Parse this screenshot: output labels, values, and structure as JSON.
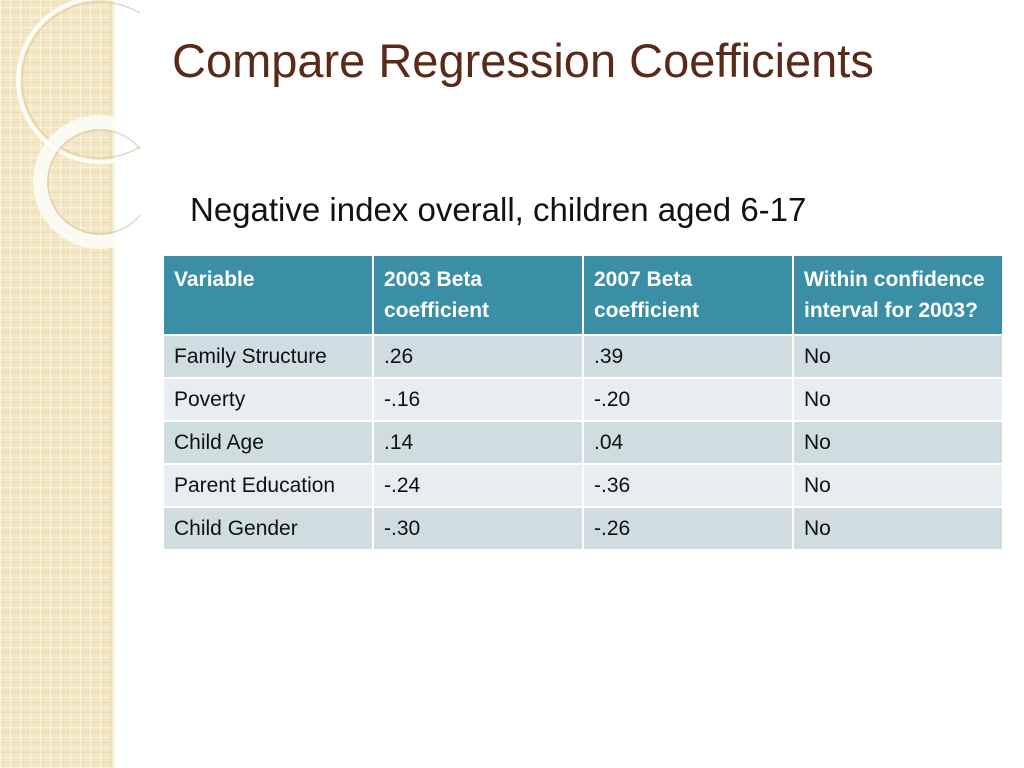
{
  "slide": {
    "title": "Compare Regression Coefficients",
    "subtitle": "Negative index overall, children aged 6-17"
  },
  "table": {
    "headers": [
      "Variable",
      "2003 Beta coefficient",
      "2007 Beta coefficient",
      "Within confidence interval for 2003?"
    ],
    "rows": [
      [
        "Family Structure",
        ".26",
        ".39",
        "No"
      ],
      [
        "Poverty",
        "-.16",
        "-.20",
        "No"
      ],
      [
        "Child Age",
        ".14",
        ".04",
        "No"
      ],
      [
        "Parent Education",
        "-.24",
        "-.36",
        "No"
      ],
      [
        "Child Gender",
        "-.30",
        "-.26",
        "No"
      ]
    ]
  },
  "colors": {
    "title": "#5a2a18",
    "header_bg": "#3a8fa6",
    "row_odd_bg": "#cfdde1",
    "row_even_bg": "#e8eef0",
    "strip_bg": "#f3e6c3"
  }
}
